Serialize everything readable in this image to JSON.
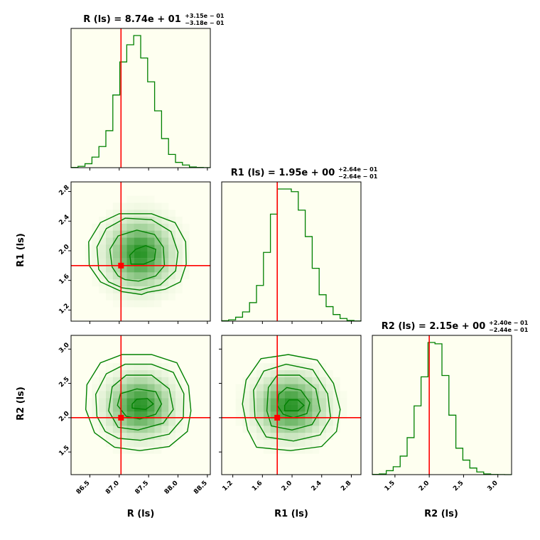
{
  "chart_data": {
    "type": "corner",
    "parameters": [
      "R (ls)",
      "R1 (ls)",
      "R2 (ls)"
    ],
    "truths": [
      87.03,
      1.8,
      2.0
    ],
    "colors": {
      "hist": "#008000",
      "truth": "#ff0000",
      "panel_bg": "#fefff0"
    },
    "ranges": [
      [
        86.18,
        88.55
      ],
      [
        1.05,
        2.93
      ],
      [
        1.17,
        3.2
      ]
    ],
    "ticks": [
      {
        "values": [
          86.5,
          87.0,
          87.5,
          88.0,
          88.5
        ],
        "labels": [
          "86.5",
          "87.0",
          "87.5",
          "88.0",
          "88.5"
        ]
      },
      {
        "values": [
          1.2,
          1.6,
          2.0,
          2.4,
          2.8
        ],
        "labels": [
          "1.2",
          "1.6",
          "2.0",
          "2.4",
          "2.8"
        ]
      },
      {
        "values": [
          1.5,
          2.0,
          2.5,
          3.0
        ],
        "labels": [
          "1.5",
          "2.0",
          "2.5",
          "3.0"
        ]
      }
    ],
    "titles": [
      {
        "main": "R (ls) = 8.74e + 01",
        "sup": "+3.15e − 01",
        "sub": "−3.18e − 01"
      },
      {
        "main": "R1 (ls) = 1.95e + 00",
        "sup": "+2.64e − 01",
        "sub": "−2.64e − 01"
      },
      {
        "main": "R2 (ls) = 2.15e + 00",
        "sup": "+2.40e − 01",
        "sub": "−2.44e − 01"
      }
    ],
    "hist1d": [
      {
        "edges_from": 86.18,
        "bin_width": 0.1185,
        "counts": [
          0.2,
          1,
          3,
          8,
          16,
          28,
          55,
          80,
          93,
          100,
          83,
          65,
          43,
          22,
          10,
          4,
          2,
          0.5,
          0.2,
          0.05
        ]
      },
      {
        "edges_from": 1.05,
        "bin_width": 0.094,
        "counts": [
          0.3,
          1,
          3,
          7,
          14,
          27,
          52,
          81,
          100,
          100,
          98,
          84,
          64,
          40,
          20,
          11,
          5,
          2,
          0.5,
          0.1
        ]
      },
      {
        "edges_from": 1.17,
        "bin_width": 0.1015,
        "counts": [
          0.2,
          0.5,
          3,
          6,
          14,
          28,
          52,
          74,
          100,
          99,
          75,
          45,
          20,
          11,
          5,
          2,
          0.5,
          0.1,
          0.05,
          0.02
        ]
      }
    ],
    "contours": [
      {
        "pair": [
          1,
          0
        ],
        "levels": [
          [
            [
              87.1,
              1.61
            ],
            [
              87.33,
              1.59
            ],
            [
              87.62,
              1.66
            ],
            [
              87.77,
              1.8
            ],
            [
              87.75,
              2.05
            ],
            [
              87.6,
              2.22
            ],
            [
              87.3,
              2.28
            ],
            [
              86.98,
              2.2
            ],
            [
              86.84,
              2.02
            ],
            [
              86.88,
              1.78
            ],
            [
              86.98,
              1.66
            ]
          ],
          [
            [
              87.05,
              1.5
            ],
            [
              87.35,
              1.47
            ],
            [
              87.7,
              1.54
            ],
            [
              87.96,
              1.73
            ],
            [
              88.0,
              1.98
            ],
            [
              87.88,
              2.26
            ],
            [
              87.55,
              2.42
            ],
            [
              87.1,
              2.44
            ],
            [
              86.78,
              2.3
            ],
            [
              86.62,
              2.05
            ],
            [
              86.65,
              1.75
            ],
            [
              86.82,
              1.58
            ]
          ],
          [
            [
              87.04,
              1.45
            ],
            [
              87.38,
              1.41
            ],
            [
              87.48,
              1.44
            ],
            [
              87.78,
              1.48
            ],
            [
              88.04,
              1.58
            ],
            [
              88.14,
              1.82
            ],
            [
              88.13,
              2.12
            ],
            [
              87.95,
              2.38
            ],
            [
              87.55,
              2.5
            ],
            [
              87.0,
              2.5
            ],
            [
              86.68,
              2.38
            ],
            [
              86.48,
              2.12
            ],
            [
              86.49,
              1.8
            ],
            [
              86.68,
              1.58
            ]
          ],
          [
            [
              87.2,
              1.82
            ],
            [
              87.42,
              1.82
            ],
            [
              87.6,
              1.88
            ],
            [
              87.62,
              2.02
            ],
            [
              87.45,
              2.07
            ],
            [
              87.28,
              2.02
            ],
            [
              87.18,
              1.94
            ]
          ]
        ]
      },
      {
        "pair": [
          2,
          0
        ],
        "levels": [
          [
            [
              87.12,
              2.02
            ],
            [
              87.35,
              1.98
            ],
            [
              87.62,
              2.05
            ],
            [
              87.72,
              2.2
            ],
            [
              87.62,
              2.38
            ],
            [
              87.3,
              2.42
            ],
            [
              87.02,
              2.35
            ],
            [
              86.97,
              2.18
            ]
          ],
          [
            [
              86.98,
              1.86
            ],
            [
              87.32,
              1.82
            ],
            [
              87.75,
              1.92
            ],
            [
              87.92,
              2.12
            ],
            [
              87.85,
              2.42
            ],
            [
              87.55,
              2.62
            ],
            [
              87.12,
              2.62
            ],
            [
              86.88,
              2.45
            ],
            [
              86.82,
              2.1
            ]
          ],
          [
            [
              86.98,
              1.7
            ],
            [
              87.36,
              1.67
            ],
            [
              87.85,
              1.76
            ],
            [
              88.09,
              2.0
            ],
            [
              88.1,
              2.35
            ],
            [
              87.92,
              2.66
            ],
            [
              87.55,
              2.78
            ],
            [
              87.1,
              2.78
            ],
            [
              86.78,
              2.64
            ],
            [
              86.6,
              2.34
            ],
            [
              86.62,
              2.02
            ],
            [
              86.76,
              1.8
            ]
          ],
          [
            [
              86.92,
              1.57
            ],
            [
              87.35,
              1.52
            ],
            [
              87.85,
              1.58
            ],
            [
              88.16,
              1.8
            ],
            [
              88.22,
              2.1
            ],
            [
              88.18,
              2.46
            ],
            [
              87.98,
              2.8
            ],
            [
              87.55,
              2.92
            ],
            [
              87.05,
              2.92
            ],
            [
              86.68,
              2.8
            ],
            [
              86.45,
              2.48
            ],
            [
              86.43,
              2.12
            ],
            [
              86.58,
              1.78
            ]
          ],
          [
            [
              87.22,
              2.14
            ],
            [
              87.45,
              2.12
            ],
            [
              87.58,
              2.2
            ],
            [
              87.48,
              2.28
            ],
            [
              87.3,
              2.27
            ],
            [
              87.22,
              2.2
            ]
          ]
        ]
      },
      {
        "pair": [
          2,
          1
        ],
        "levels": [
          [
            [
              1.88,
              2.05
            ],
            [
              2.02,
              2.0
            ],
            [
              2.2,
              2.06
            ],
            [
              2.24,
              2.22
            ],
            [
              2.12,
              2.4
            ],
            [
              1.93,
              2.44
            ],
            [
              1.82,
              2.34
            ],
            [
              1.8,
              2.18
            ]
          ],
          [
            [
              1.72,
              1.88
            ],
            [
              2.0,
              1.82
            ],
            [
              2.27,
              1.9
            ],
            [
              2.38,
              2.1
            ],
            [
              2.32,
              2.42
            ],
            [
              2.1,
              2.62
            ],
            [
              1.8,
              2.62
            ],
            [
              1.68,
              2.44
            ],
            [
              1.66,
              2.1
            ]
          ],
          [
            [
              1.65,
              1.72
            ],
            [
              2.02,
              1.66
            ],
            [
              2.38,
              1.75
            ],
            [
              2.52,
              2.0
            ],
            [
              2.48,
              2.35
            ],
            [
              2.28,
              2.7
            ],
            [
              1.92,
              2.78
            ],
            [
              1.62,
              2.68
            ],
            [
              1.48,
              2.4
            ],
            [
              1.5,
              2.0
            ]
          ],
          [
            [
              1.52,
              1.57
            ],
            [
              1.98,
              1.52
            ],
            [
              2.4,
              1.58
            ],
            [
              2.6,
              1.8
            ],
            [
              2.65,
              2.12
            ],
            [
              2.56,
              2.5
            ],
            [
              2.34,
              2.84
            ],
            [
              1.95,
              2.92
            ],
            [
              1.58,
              2.86
            ],
            [
              1.38,
              2.55
            ],
            [
              1.33,
              2.2
            ],
            [
              1.4,
              1.82
            ]
          ],
          [
            [
              1.9,
              2.1
            ],
            [
              2.08,
              2.1
            ],
            [
              2.16,
              2.18
            ],
            [
              2.08,
              2.26
            ],
            [
              1.96,
              2.26
            ],
            [
              1.9,
              2.18
            ]
          ]
        ]
      }
    ],
    "density": [
      {
        "pair": [
          1,
          0
        ],
        "mean": [
          87.35,
          1.96
        ],
        "sd": [
          0.32,
          0.27
        ]
      },
      {
        "pair": [
          2,
          0
        ],
        "mean": [
          87.35,
          2.17
        ],
        "sd": [
          0.32,
          0.26
        ]
      },
      {
        "pair": [
          2,
          1
        ],
        "mean": [
          1.98,
          2.17
        ],
        "sd": [
          0.27,
          0.26
        ]
      }
    ]
  }
}
